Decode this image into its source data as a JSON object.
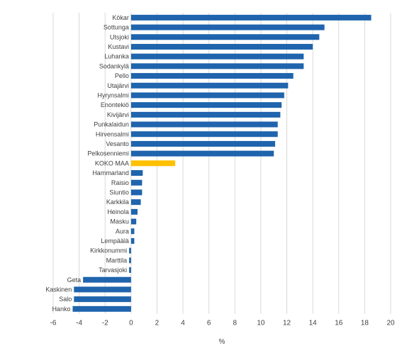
{
  "chart_data": {
    "type": "bar",
    "orientation": "horizontal",
    "title": "",
    "xlabel": "%",
    "ylabel": "",
    "xlim": [
      -6,
      20
    ],
    "xticks": [
      "-6",
      "-4",
      "-2",
      "0",
      "2",
      "4",
      "6",
      "8",
      "10",
      "12",
      "14",
      "16",
      "18",
      "20"
    ],
    "grid": "vertical",
    "legend": "none",
    "colors": {
      "default": "#1f64ad",
      "highlight": "#ffc000",
      "grid": "#d9d9d9",
      "text": "#404040"
    },
    "highlight_category": "KOKO MAA",
    "categories": [
      "Kökar",
      "Sottunga",
      "Utsjoki",
      "Kustavi",
      "Luhanka",
      "Sodankylä",
      "Pello",
      "Utajärvi",
      "Hyrynsalmi",
      "Enontekiö",
      "Kivijärvi",
      "Punkalaidun",
      "Hirvensalmi",
      "Vesanto",
      "Pelkosenniemi",
      "KOKO MAA",
      "Hammarland",
      "Raisio",
      "Siuntio",
      "Karkkila",
      "Heinola",
      "Masku",
      "Aura",
      "Lempäälä",
      "Kirkkonummi",
      "Marttila",
      "Tarvasjoki",
      "Geta",
      "Kaskinen",
      "Salo",
      "Hanko"
    ],
    "values": [
      18.5,
      14.9,
      14.5,
      14.0,
      13.3,
      13.3,
      12.5,
      12.1,
      11.8,
      11.6,
      11.5,
      11.3,
      11.3,
      11.1,
      11.0,
      3.4,
      0.9,
      0.85,
      0.85,
      0.75,
      0.5,
      0.4,
      0.25,
      0.25,
      -0.15,
      -0.15,
      -0.15,
      -3.7,
      -4.4,
      -4.4,
      -4.5
    ]
  }
}
